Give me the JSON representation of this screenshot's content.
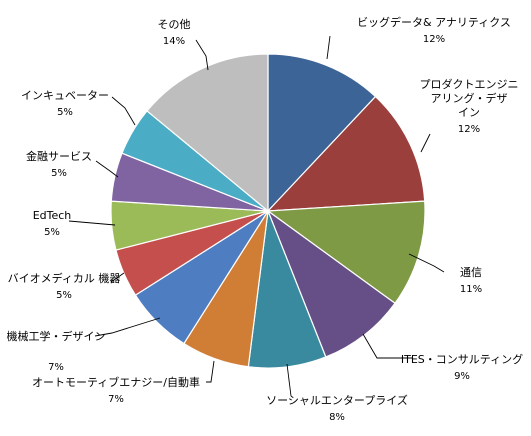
{
  "chart_data": {
    "type": "pie",
    "start_angle_deg": 0,
    "direction": "clockwise",
    "slices": [
      {
        "label": "ビッグデータ& アナリティクス",
        "value": 12,
        "percent_label": "12%",
        "color": "#3D6496"
      },
      {
        "label": "プロダクトエンジニアリング・デザイン",
        "value": 12,
        "percent_label": "12%",
        "color": "#9A3F3C"
      },
      {
        "label": "通信",
        "value": 11,
        "percent_label": "11%",
        "color": "#7E9A45"
      },
      {
        "label": "ITES・コンサルティング",
        "value": 9,
        "percent_label": "9%",
        "color": "#664F86"
      },
      {
        "label": "ソーシャルエンタープライズ",
        "value": 8,
        "percent_label": "8%",
        "color": "#398A9E"
      },
      {
        "label": "オートモーティブエナジー/自動車",
        "value": 7,
        "percent_label": "7%",
        "color": "#D07E36"
      },
      {
        "label": "機械工学・デザイン",
        "value": 7,
        "percent_label": "7%",
        "color": "#4F7DC1"
      },
      {
        "label": "バイオメディカル 機器",
        "value": 5,
        "percent_label": "5%",
        "color": "#C44F4C"
      },
      {
        "label": "EdTech",
        "value": 5,
        "percent_label": "5%",
        "color": "#9BBB59"
      },
      {
        "label": "金融サービス",
        "value": 5,
        "percent_label": "5%",
        "color": "#8064A2"
      },
      {
        "label": "インキュベーター",
        "value": 5,
        "percent_label": "5%",
        "color": "#4BACC6"
      },
      {
        "label": "その他",
        "value": 14,
        "percent_label": "14%",
        "color": "#BEBEBE"
      }
    ]
  }
}
